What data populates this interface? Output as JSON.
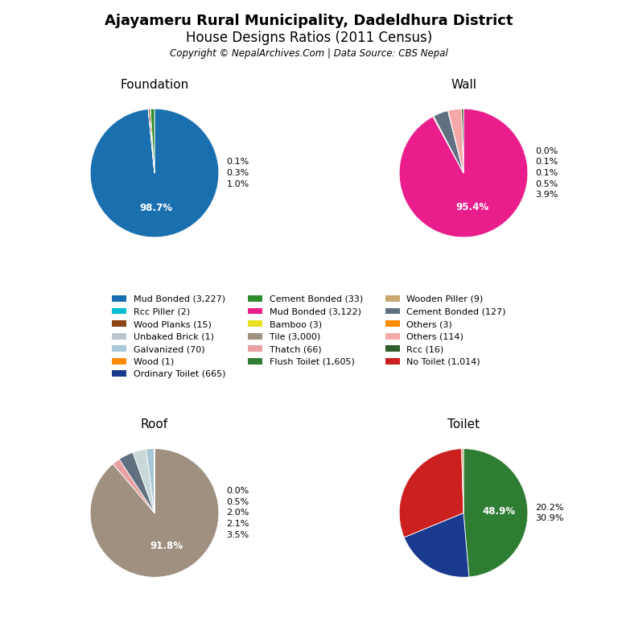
{
  "title": "Ajayameru Rural Municipality, Dadeldhura District",
  "subtitle": "House Designs Ratios (2011 Census)",
  "annotations": [
    "Copyright © NepalArchives.Com | Data Source: CBS Nepal"
  ],
  "legend": "center",
  "legend_entries": [
    {
      "label": "Mud Bonded (3,227)",
      "color": "#1a6faf"
    },
    {
      "label": "Cement Bonded (33)",
      "color": "#2e8b2e"
    },
    {
      "label": "Wooden Piller (9)",
      "color": "#c8a870"
    },
    {
      "label": "Rcc Piller (2)",
      "color": "#00bcd4"
    },
    {
      "label": "Mud Bonded (3,122)",
      "color": "#e91e8c"
    },
    {
      "label": "Cement Bonded (127)",
      "color": "#607080"
    },
    {
      "label": "Wood Planks (15)",
      "color": "#8B4513"
    },
    {
      "label": "Bamboo (3)",
      "color": "#e8e020"
    },
    {
      "label": "Others (3)",
      "color": "#FF8C00"
    },
    {
      "label": "Unbaked Brick (1)",
      "color": "#b8c4d0"
    },
    {
      "label": "Tile (3,000)",
      "color": "#a09080"
    },
    {
      "label": "Others (114)",
      "color": "#f4a8a8"
    },
    {
      "label": "Galvanized (70)",
      "color": "#a8c8d8"
    },
    {
      "label": "Thatch (66)",
      "color": "#e8a0a0"
    },
    {
      "label": "Rcc (16)",
      "color": "#2e5e2e"
    },
    {
      "label": "Wood (1)",
      "color": "#FF8C00"
    },
    {
      "label": "Flush Toilet (1,605)",
      "color": "#2e7d32"
    },
    {
      "label": "No Toilet (1,014)",
      "color": "#cc2020"
    },
    {
      "label": "Ordinary Toilet (665)",
      "color": "#1a3a8f"
    }
  ],
  "chart_data": [
    {
      "type": "pie",
      "title": "Foundation",
      "values": [
        3227,
        2,
        15,
        1,
        1,
        33
      ],
      "colors": [
        "#1a6faf",
        "#00bcd4",
        "#8B4513",
        "#b8c4d0",
        "#c8c8c8",
        "#2e8b2e"
      ],
      "annotations": [
        "98.7%",
        "0.1%",
        "0.3%",
        "1.0%"
      ]
    },
    {
      "type": "pie",
      "title": "Wall",
      "values": [
        3122,
        9,
        127,
        3,
        114,
        16
      ],
      "colors": [
        "#e91e8c",
        "#c8a870",
        "#607080",
        "#FF8C00",
        "#f4a8a8",
        "#2e5e2e"
      ],
      "annotations": [
        "95.4%",
        "0.0%",
        "0.1%",
        "0.1%",
        "0.5%",
        "3.9%"
      ]
    },
    {
      "type": "pie",
      "title": "Roof",
      "values": [
        3000,
        66,
        127,
        114,
        70,
        1
      ],
      "colors": [
        "#a09080",
        "#e8a0a0",
        "#607080",
        "#c8d8d8",
        "#a8c8d8",
        "#FF8C00"
      ],
      "annotations": [
        "91.8%",
        "0.0%",
        "0.5%",
        "2.0%",
        "2.1%",
        "3.5%"
      ]
    },
    {
      "type": "pie",
      "title": "Toilet",
      "values": [
        1605,
        665,
        1014,
        16
      ],
      "colors": [
        "#2e7d32",
        "#1a3a8f",
        "#cc2020",
        "#c8a870"
      ],
      "annotations": [
        "48.9%",
        "20.2%",
        "30.9%"
      ]
    }
  ]
}
